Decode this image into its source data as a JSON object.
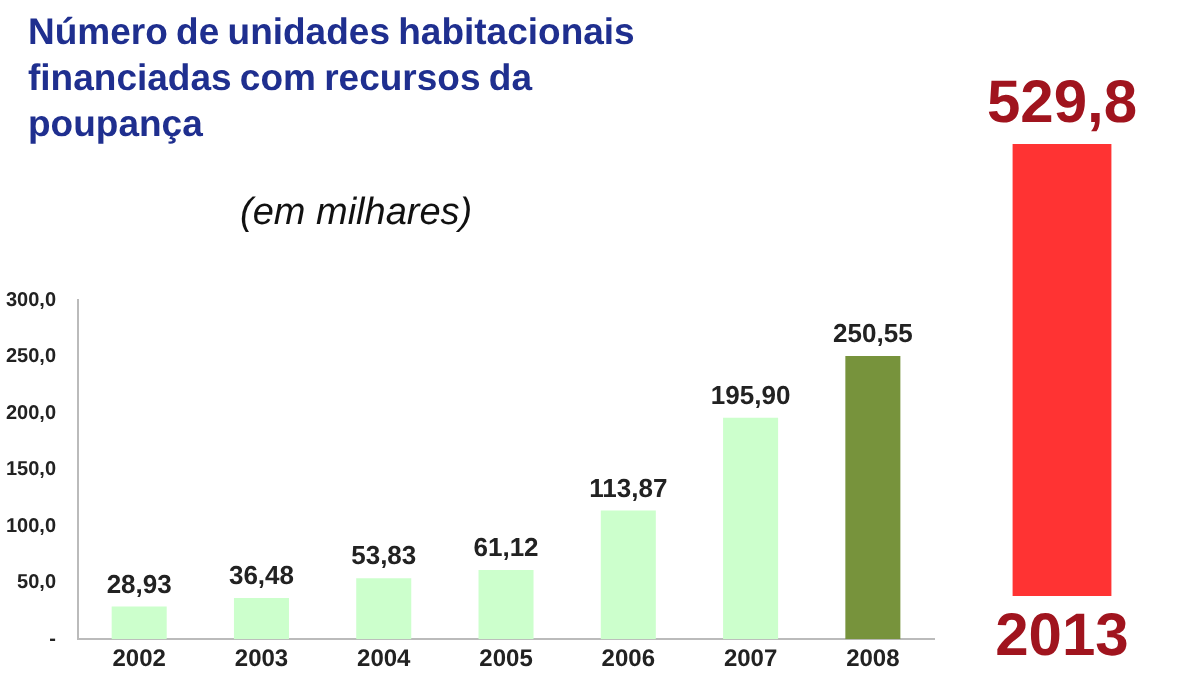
{
  "chart_data": [
    {
      "type": "bar",
      "title": "Número de unidades habitacionais financiadas com recursos da poupança",
      "subtitle": "(em milhares)",
      "categories": [
        "2002",
        "2003",
        "2004",
        "2005",
        "2006",
        "2007",
        "2008"
      ],
      "values": [
        28.93,
        36.48,
        53.83,
        61.12,
        113.87,
        195.9,
        250.55
      ],
      "value_labels": [
        "28,93",
        "36,48",
        "53,83",
        "61,12",
        "113,87",
        "195,90",
        "250,55"
      ],
      "colors": [
        "#ccffcc",
        "#ccffcc",
        "#ccffcc",
        "#ccffcc",
        "#ccffcc",
        "#ccffcc",
        "#77933c"
      ],
      "ylim": [
        0,
        300
      ],
      "yticks": [
        {
          "value": 0,
          "label": "-"
        },
        {
          "value": 50,
          "label": "50,0"
        },
        {
          "value": 100,
          "label": "100,0"
        },
        {
          "value": 150,
          "label": "150,0"
        },
        {
          "value": 200,
          "label": "200,0"
        },
        {
          "value": 250,
          "label": "250,0"
        },
        {
          "value": 300,
          "label": "300,0"
        }
      ],
      "grid": false,
      "legend": false
    },
    {
      "type": "bar",
      "categories": [
        "2013"
      ],
      "values": [
        529.8
      ],
      "value_labels": [
        "529,8"
      ],
      "colors": [
        "#ff3333"
      ],
      "tick_labels": "x",
      "grid": false,
      "legend": false
    }
  ]
}
